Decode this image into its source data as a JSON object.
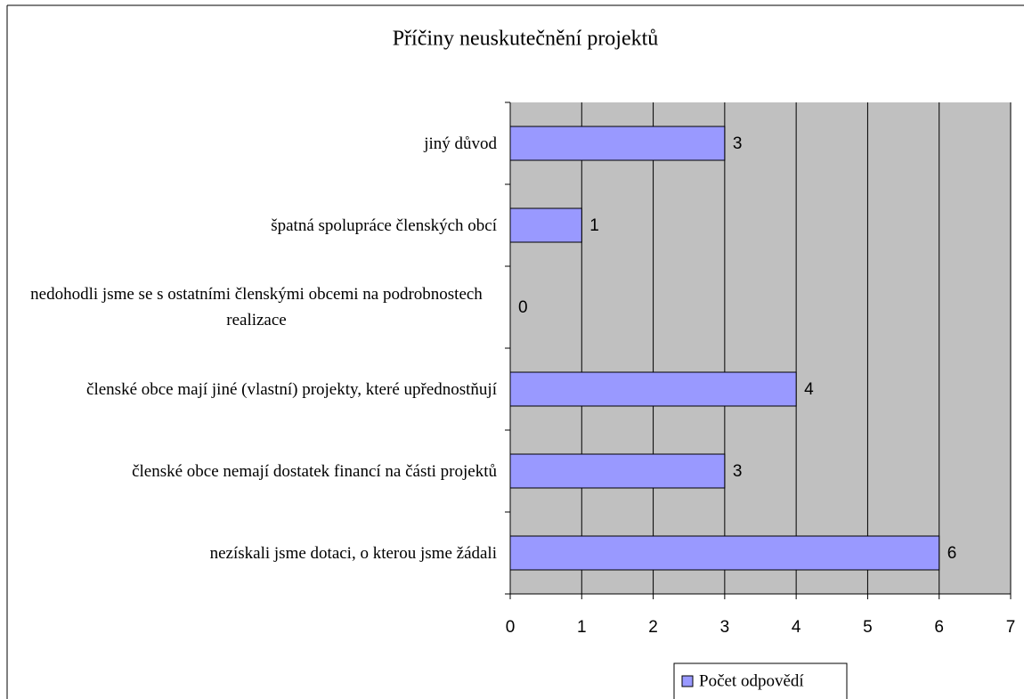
{
  "chart_data": {
    "type": "bar",
    "orientation": "horizontal",
    "title": "Příčiny neuskutečnění projektů",
    "categories": [
      "jiný důvod",
      "špatná spolupráce členských obcí",
      "nedohodli jsme se s ostatními členskými obcemi na podrobnostech realizace",
      "členské obce mají jiné (vlastní) projekty, které upřednostňují",
      "členské obce nemají dostatek financí na části projektů",
      "nezískali jsme dotaci, o kterou jsme žádali"
    ],
    "series": [
      {
        "name": "Počet odpovědí",
        "color": "#9999ff",
        "values": [
          3,
          1,
          0,
          4,
          3,
          6
        ]
      }
    ],
    "xlim": [
      0,
      7
    ],
    "xticks": [
      0,
      1,
      2,
      3,
      4,
      5,
      6,
      7
    ],
    "grid": true,
    "legend": "bottom",
    "plot_background": "#c0c0c0"
  }
}
